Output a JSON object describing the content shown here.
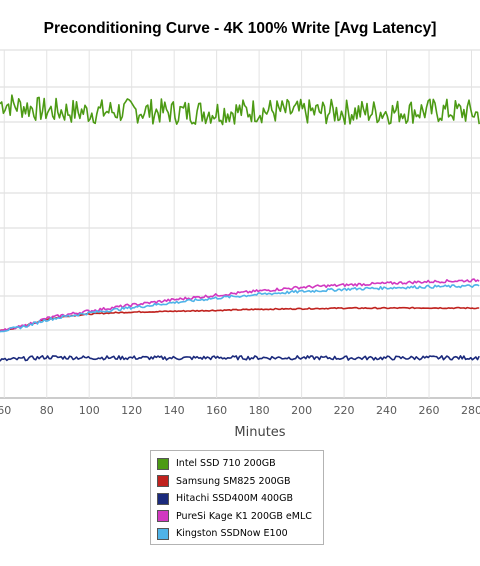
{
  "chart_data": {
    "type": "line",
    "title": "Preconditioning Curve - 4K 100% Write [Avg Latency]",
    "xlabel": "Minutes",
    "ylabel": "",
    "x_tick_labels": [
      "60",
      "80",
      "100",
      "120",
      "140",
      "160",
      "180",
      "200",
      "220",
      "240",
      "260",
      "280"
    ],
    "xlim": [
      58,
      284
    ],
    "ylim": [
      0,
      11
    ],
    "grid": true,
    "legend_position": "bottom-center",
    "series": [
      {
        "name": "Intel SSD 710 200GB",
        "color": "#4c9a14",
        "x": [
          60,
          80,
          100,
          120,
          140,
          160,
          180,
          200,
          220,
          240,
          260,
          280,
          284
        ],
        "y": [
          9.1,
          8.85,
          8.8,
          8.85,
          8.8,
          8.8,
          8.85,
          8.8,
          8.8,
          8.8,
          8.85,
          8.8,
          8.7
        ]
      },
      {
        "name": "Samsung SM825 200GB",
        "color": "#c0221e",
        "x": [
          60,
          70,
          80,
          90,
          100,
          110,
          120,
          140,
          160,
          180,
          200,
          220,
          240,
          260,
          284
        ],
        "y": [
          1.05,
          1.22,
          1.45,
          1.56,
          1.63,
          1.67,
          1.7,
          1.73,
          1.76,
          1.8,
          1.82,
          1.84,
          1.84,
          1.85,
          1.84
        ]
      },
      {
        "name": "Hitachi SSD400M 400GB",
        "color": "#1b2a7c",
        "x": [
          60,
          70,
          80,
          100,
          120,
          140,
          160,
          180,
          200,
          220,
          240,
          260,
          284
        ],
        "y": [
          0.0,
          0.05,
          0.1,
          0.08,
          0.08,
          0.07,
          0.08,
          0.08,
          0.08,
          0.07,
          0.07,
          0.08,
          0.08
        ]
      },
      {
        "name": "PureSi Kage K1 200GB eMLC",
        "color": "#d138c0",
        "x": [
          60,
          70,
          80,
          90,
          100,
          120,
          140,
          160,
          180,
          200,
          220,
          240,
          260,
          284
        ],
        "y": [
          1.05,
          1.22,
          1.48,
          1.62,
          1.74,
          1.95,
          2.14,
          2.3,
          2.45,
          2.58,
          2.66,
          2.72,
          2.78,
          2.83
        ]
      },
      {
        "name": "Kingston SSDNow E100",
        "color": "#4fb3e8",
        "x": [
          60,
          70,
          80,
          90,
          100,
          120,
          140,
          160,
          180,
          200,
          220,
          240,
          260,
          284
        ],
        "y": [
          1.05,
          1.2,
          1.43,
          1.56,
          1.67,
          1.86,
          2.04,
          2.2,
          2.33,
          2.43,
          2.51,
          2.56,
          2.6,
          2.63
        ]
      }
    ]
  }
}
